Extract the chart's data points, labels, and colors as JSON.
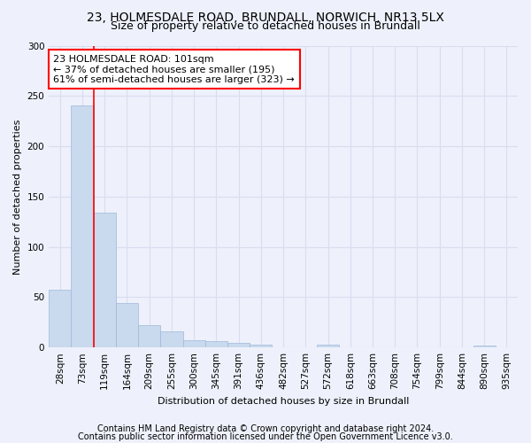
{
  "title1": "23, HOLMESDALE ROAD, BRUNDALL, NORWICH, NR13 5LX",
  "title2": "Size of property relative to detached houses in Brundall",
  "xlabel": "Distribution of detached houses by size in Brundall",
  "ylabel": "Number of detached properties",
  "categories": [
    "28sqm",
    "73sqm",
    "119sqm",
    "164sqm",
    "209sqm",
    "255sqm",
    "300sqm",
    "345sqm",
    "391sqm",
    "436sqm",
    "482sqm",
    "527sqm",
    "572sqm",
    "618sqm",
    "663sqm",
    "708sqm",
    "754sqm",
    "799sqm",
    "844sqm",
    "890sqm",
    "935sqm"
  ],
  "values": [
    57,
    241,
    134,
    44,
    22,
    16,
    7,
    6,
    5,
    3,
    0,
    0,
    3,
    0,
    0,
    0,
    0,
    0,
    0,
    2,
    0
  ],
  "bar_color": "#c9d9ee",
  "bar_edge_color": "#a0b8d8",
  "red_line_x": 1.5,
  "annotation_line1": "23 HOLMESDALE ROAD: 101sqm",
  "annotation_line2": "← 37% of detached houses are smaller (195)",
  "annotation_line3": "61% of semi-detached houses are larger (323) →",
  "annotation_box_color": "white",
  "annotation_box_edge": "red",
  "ylim": [
    0,
    300
  ],
  "yticks": [
    0,
    50,
    100,
    150,
    200,
    250,
    300
  ],
  "background_color": "#eef1fb",
  "grid_color": "#d8ddf0",
  "footnote1": "Contains HM Land Registry data © Crown copyright and database right 2024.",
  "footnote2": "Contains public sector information licensed under the Open Government Licence v3.0.",
  "title1_fontsize": 10,
  "title2_fontsize": 9,
  "axis_label_fontsize": 8,
  "tick_fontsize": 7.5,
  "annotation_fontsize": 8,
  "footnote_fontsize": 7
}
